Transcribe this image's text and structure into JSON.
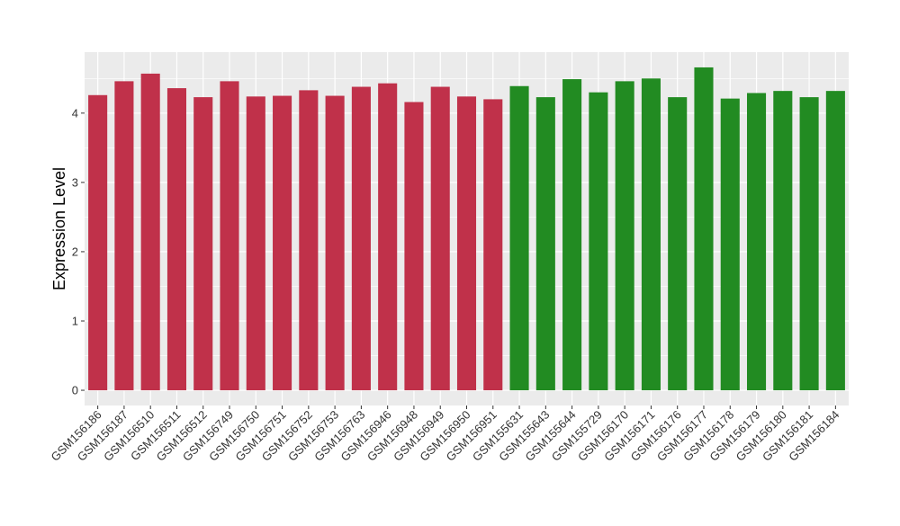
{
  "chart_data": {
    "type": "bar",
    "title": "",
    "xlabel": "",
    "ylabel": "Expression Level",
    "ylim": [
      -0.22,
      4.88
    ],
    "yticks": [
      0,
      1,
      2,
      3,
      4
    ],
    "grid": true,
    "legend": "none",
    "colors": {
      "group_a": "#c0314a",
      "group_b": "#228b22",
      "panel_bg": "#ebebeb",
      "grid": "#ffffff",
      "text": "#333333"
    },
    "categories": [
      "GSM156186",
      "GSM156187",
      "GSM156510",
      "GSM156511",
      "GSM156512",
      "GSM156749",
      "GSM156750",
      "GSM156751",
      "GSM156752",
      "GSM156753",
      "GSM156763",
      "GSM156946",
      "GSM156948",
      "GSM156949",
      "GSM156950",
      "GSM156951",
      "GSM155631",
      "GSM155643",
      "GSM155644",
      "GSM155729",
      "GSM156170",
      "GSM156171",
      "GSM156176",
      "GSM156177",
      "GSM156178",
      "GSM156179",
      "GSM156180",
      "GSM156181",
      "GSM156184"
    ],
    "values": [
      4.26,
      4.46,
      4.57,
      4.36,
      4.23,
      4.46,
      4.24,
      4.25,
      4.33,
      4.25,
      4.38,
      4.43,
      4.16,
      4.38,
      4.24,
      4.2,
      4.39,
      4.23,
      4.49,
      4.3,
      4.46,
      4.5,
      4.23,
      4.66,
      4.21,
      4.29,
      4.32,
      4.23,
      4.32
    ],
    "groups": [
      "a",
      "a",
      "a",
      "a",
      "a",
      "a",
      "a",
      "a",
      "a",
      "a",
      "a",
      "a",
      "a",
      "a",
      "a",
      "a",
      "b",
      "b",
      "b",
      "b",
      "b",
      "b",
      "b",
      "b",
      "b",
      "b",
      "b",
      "b",
      "b"
    ]
  }
}
